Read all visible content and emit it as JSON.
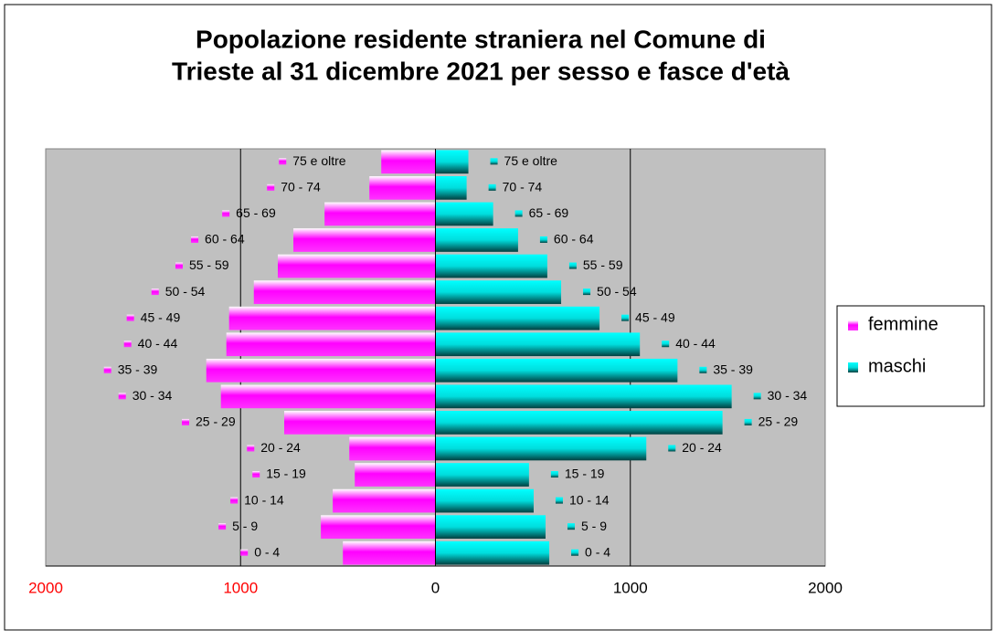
{
  "chart_data": {
    "type": "pyramid",
    "title": [
      "Popolazione residente straniera nel Comune di",
      "Trieste al 31 dicembre 2021 per sesso e fasce d'età"
    ],
    "categories": [
      "0 - 4",
      "5 - 9",
      "10 - 14",
      "15 - 19",
      "20 - 24",
      "25 - 29",
      "30 - 34",
      "35 - 39",
      "40 - 44",
      "45 - 49",
      "50 - 54",
      "55 - 59",
      "60 - 64",
      "65 - 69",
      "70 - 74",
      "75 e oltre"
    ],
    "series": [
      {
        "name": "femmine",
        "color": "#ff00ff",
        "values": [
          475,
          588,
          527,
          414,
          442,
          776,
          1101,
          1176,
          1073,
          1059,
          932,
          809,
          729,
          569,
          339,
          278
        ]
      },
      {
        "name": "maschi",
        "color": "#00e5e5",
        "values": [
          584,
          565,
          504,
          480,
          1082,
          1473,
          1520,
          1242,
          1049,
          842,
          645,
          574,
          424,
          296,
          160,
          169
        ]
      }
    ],
    "xlim": [
      -2000,
      2000
    ],
    "xticks": [
      {
        "value": -2000,
        "label": "2000"
      },
      {
        "value": -1000,
        "label": "1000"
      },
      0,
      1000,
      2000
    ],
    "grid": true,
    "legend": "right"
  }
}
